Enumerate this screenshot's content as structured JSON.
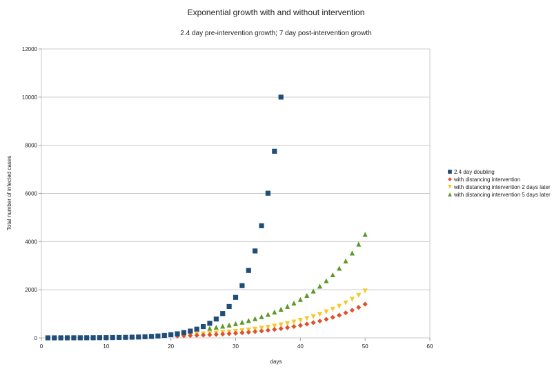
{
  "chart_data": {
    "type": "scatter",
    "title": "Exponential growth with and without intervention",
    "subtitle": "2.4 day pre-intervention growth; 7 day post-intervention growth",
    "xlabel": "days",
    "ylabel": "Total number of infected cases",
    "xlim": [
      0,
      60
    ],
    "ylim": [
      0,
      12000
    ],
    "xticks": [
      0,
      10,
      20,
      30,
      40,
      50,
      60
    ],
    "yticks": [
      0,
      2000,
      4000,
      6000,
      8000,
      10000,
      12000
    ],
    "grid": "horizontal",
    "legend_position": "right",
    "series": [
      {
        "name": "2.4 day doubling",
        "marker": "square",
        "color": "#1f4e79",
        "x_start": 1,
        "values": [
          1,
          1,
          2,
          2,
          3,
          4,
          5,
          6,
          8,
          10,
          13,
          17,
          22,
          29,
          37,
          48,
          61,
          79,
          102,
          132,
          170,
          219,
          283,
          365,
          471,
          607,
          784,
          1011,
          1304,
          1682,
          2170,
          2800,
          3611,
          4658,
          6009,
          7752,
          10000
        ]
      },
      {
        "name": "with distancing intervention",
        "marker": "diamond",
        "color": "#e0502a",
        "x_start": 21,
        "values": [
          79,
          88,
          97,
          107,
          118,
          130,
          144,
          159,
          175,
          193,
          214,
          236,
          260,
          287,
          317,
          350,
          387,
          427,
          471,
          520,
          574,
          634,
          700,
          773,
          854,
          942,
          1040,
          1148,
          1268,
          1400
        ]
      },
      {
        "name": "with distancing intervention 2 days later",
        "marker": "triangle-down",
        "color": "#f5c92e",
        "x_start": 23,
        "values": [
          135,
          149,
          164,
          181,
          200,
          221,
          244,
          269,
          298,
          328,
          363,
          400,
          442,
          488,
          539,
          595,
          657,
          725,
          800,
          884,
          975,
          1077,
          1189,
          1312,
          1449,
          1600,
          1766,
          1950
        ]
      },
      {
        "name": "with distancing intervention 5 days later",
        "marker": "triangle-up",
        "color": "#5a9a2a",
        "x_start": 26,
        "values": [
          400,
          442,
          488,
          538,
          594,
          656,
          724,
          800,
          883,
          975,
          1076,
          1188,
          1311,
          1448,
          1599,
          1764,
          1948,
          2151,
          2374,
          2622,
          2894,
          3195,
          3527,
          3895,
          4300
        ]
      }
    ]
  }
}
